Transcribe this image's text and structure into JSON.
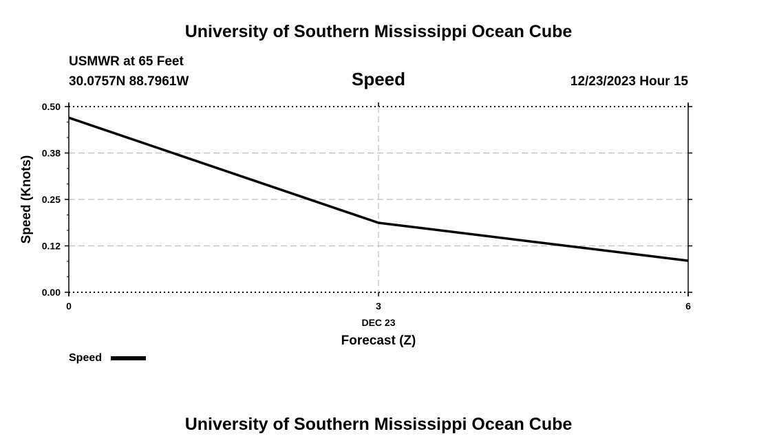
{
  "page": {
    "title_top": "University of Southern Mississippi Ocean Cube",
    "title_bottom": "University of Southern Mississippi Ocean Cube",
    "station_name": "USMWR at 65 Feet",
    "station_coords": "30.0757N  88.7961W",
    "chart_heading": "Speed",
    "datetime": "12/23/2023 Hour 15"
  },
  "chart_data": {
    "type": "line",
    "title": "Speed",
    "xlabel": "Forecast (Z)",
    "xlabel_date": "DEC 23",
    "ylabel": "Speed (Knots)",
    "x": [
      0,
      3,
      6
    ],
    "x_tick_labels": [
      "0",
      "3",
      "6"
    ],
    "ylim": [
      0,
      0.5
    ],
    "y_ticks": [
      0.0,
      0.125,
      0.25,
      0.375,
      0.5
    ],
    "y_tick_labels": [
      "0.00",
      "0.12",
      "0.25",
      "0.38",
      "0.50"
    ],
    "grid": true,
    "series": [
      {
        "name": "Speed",
        "x": [
          0,
          3,
          6
        ],
        "values": [
          0.47,
          0.187,
          0.085
        ],
        "color": "#000000"
      }
    ],
    "legend": {
      "position": "bottom-left",
      "entries": [
        "Speed"
      ]
    }
  }
}
